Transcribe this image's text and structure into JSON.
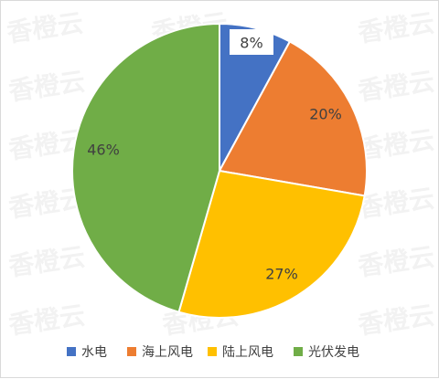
{
  "watermark_text": "香橙云",
  "chart_data": {
    "type": "pie",
    "title": "",
    "categories": [
      "水电",
      "海上风电",
      "陆上风电",
      "光伏发电"
    ],
    "values": [
      8,
      20,
      27,
      46
    ],
    "labels": [
      "8%",
      "20%",
      "27%",
      "46%"
    ],
    "colors": [
      "#4472C4",
      "#ED7D31",
      "#FFC000",
      "#70AD47"
    ],
    "legend_position": "bottom",
    "start_angle_deg": -90,
    "direction": "clockwise",
    "unit": "%"
  }
}
